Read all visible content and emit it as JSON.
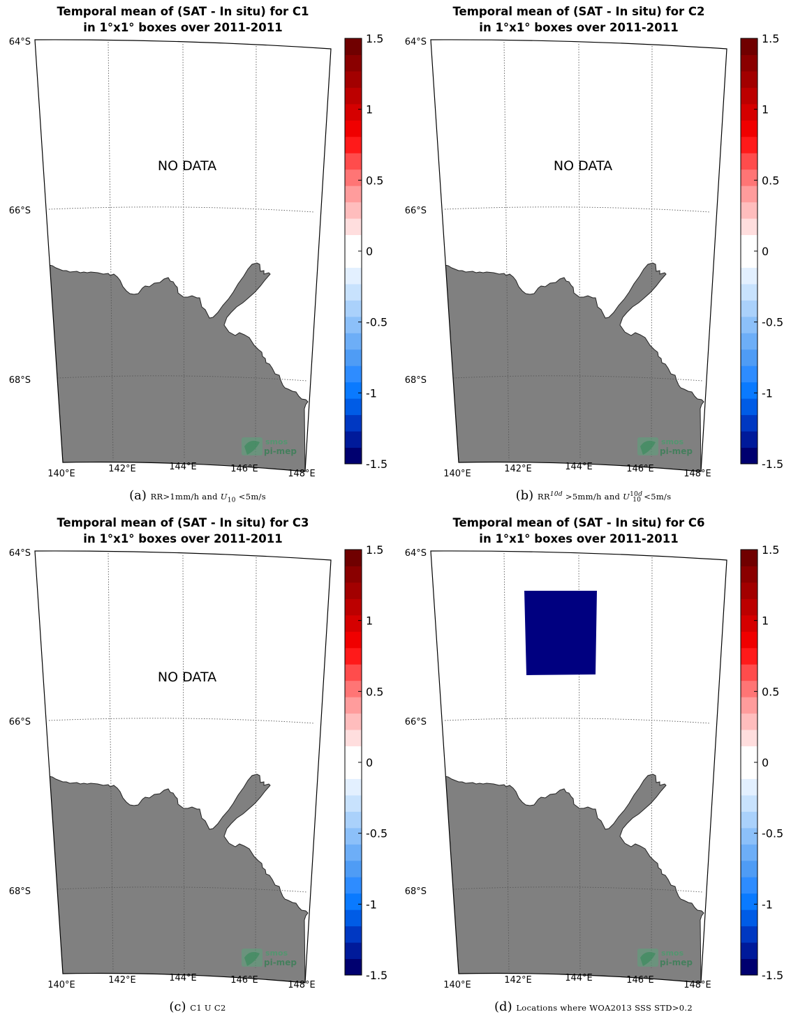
{
  "colorbar": {
    "ticks": [
      "1.5",
      "1",
      "0.5",
      "0",
      "-0.5",
      "-1",
      "-1.5"
    ],
    "range": [
      -1.5,
      1.5
    ],
    "colors": [
      "#00006f",
      "#001a9a",
      "#0038c2",
      "#005ce6",
      "#0a7aff",
      "#2e8cff",
      "#4f9cf5",
      "#6daef7",
      "#8cc0f9",
      "#aad1fb",
      "#c8e2fd",
      "#e3f0ff",
      "#ffffff",
      "#ffffff",
      "#ffdede",
      "#ffbdbd",
      "#ff9c9c",
      "#ff7575",
      "#ff4c4c",
      "#ff1a1a",
      "#f00000",
      "#d50000",
      "#bc0000",
      "#a20000",
      "#8a0000",
      "#700000"
    ]
  },
  "map": {
    "lat_labels": [
      "64°S",
      "66°S",
      "68°S"
    ],
    "lon_labels": [
      "140°E",
      "142°E",
      "144°E",
      "146°E",
      "148°E"
    ],
    "land_color": "#808080",
    "logo_line1": "smos",
    "logo_line2": "pi-mep"
  },
  "panels": [
    {
      "title_line1": "Temporal mean of (SAT - In situ) for C1",
      "title_line2": "in 1°x1° boxes over 2011-2011",
      "no_data_text": "NO DATA",
      "caption_label": "(a)",
      "caption_text": "RR>1mm/h and U10 <5m/s"
    },
    {
      "title_line1": "Temporal mean of (SAT - In situ) for C2",
      "title_line2": "in 1°x1° boxes over 2011-2011",
      "no_data_text": "NO DATA",
      "caption_label": "(b)",
      "caption_text": "RR10d >5mm/h and U10 10d <5m/s"
    },
    {
      "title_line1": "Temporal mean of (SAT - In situ) for C3",
      "title_line2": "in 1°x1° boxes over 2011-2011",
      "no_data_text": "NO DATA",
      "caption_label": "(c)",
      "caption_text": "C1 U C2"
    },
    {
      "title_line1": "Temporal mean of (SAT - In situ) for C6",
      "title_line2": "in 1°x1° boxes over 2011-2011",
      "no_data_text": "",
      "caption_label": "(d)",
      "caption_text": "Locations where WOA2013 SSS STD>0.2",
      "data_box": {
        "lon": [
          142,
          144
        ],
        "lat": [
          -64.5,
          -65.5
        ],
        "value": -1.5,
        "color": "#000080"
      }
    }
  ]
}
